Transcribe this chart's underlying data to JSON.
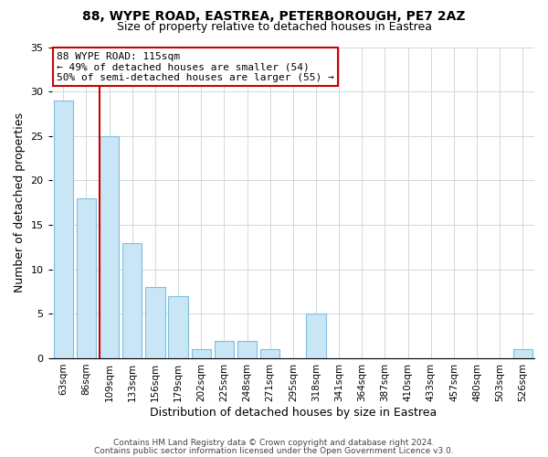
{
  "title1": "88, WYPE ROAD, EASTREA, PETERBOROUGH, PE7 2AZ",
  "title2": "Size of property relative to detached houses in Eastrea",
  "xlabel": "Distribution of detached houses by size in Eastrea",
  "ylabel": "Number of detached properties",
  "bar_labels": [
    "63sqm",
    "86sqm",
    "109sqm",
    "133sqm",
    "156sqm",
    "179sqm",
    "202sqm",
    "225sqm",
    "248sqm",
    "271sqm",
    "295sqm",
    "318sqm",
    "341sqm",
    "364sqm",
    "387sqm",
    "410sqm",
    "433sqm",
    "457sqm",
    "480sqm",
    "503sqm",
    "526sqm"
  ],
  "bar_values": [
    29,
    18,
    25,
    13,
    8,
    7,
    1,
    2,
    2,
    1,
    0,
    5,
    0,
    0,
    0,
    0,
    0,
    0,
    0,
    0,
    1
  ],
  "bar_color": "#c8e6f5",
  "bar_edge_color": "#7fbfe0",
  "vline_x_index": 2,
  "vline_color": "#cc0000",
  "ylim": [
    0,
    35
  ],
  "yticks": [
    0,
    5,
    10,
    15,
    20,
    25,
    30,
    35
  ],
  "annotation_title": "88 WYPE ROAD: 115sqm",
  "annotation_line1": "← 49% of detached houses are smaller (54)",
  "annotation_line2": "50% of semi-detached houses are larger (55) →",
  "annotation_box_color": "#ffffff",
  "annotation_box_edge": "#cc0000",
  "footer1": "Contains HM Land Registry data © Crown copyright and database right 2024.",
  "footer2": "Contains public sector information licensed under the Open Government Licence v3.0.",
  "background_color": "#ffffff",
  "grid_color": "#d0d8e0"
}
